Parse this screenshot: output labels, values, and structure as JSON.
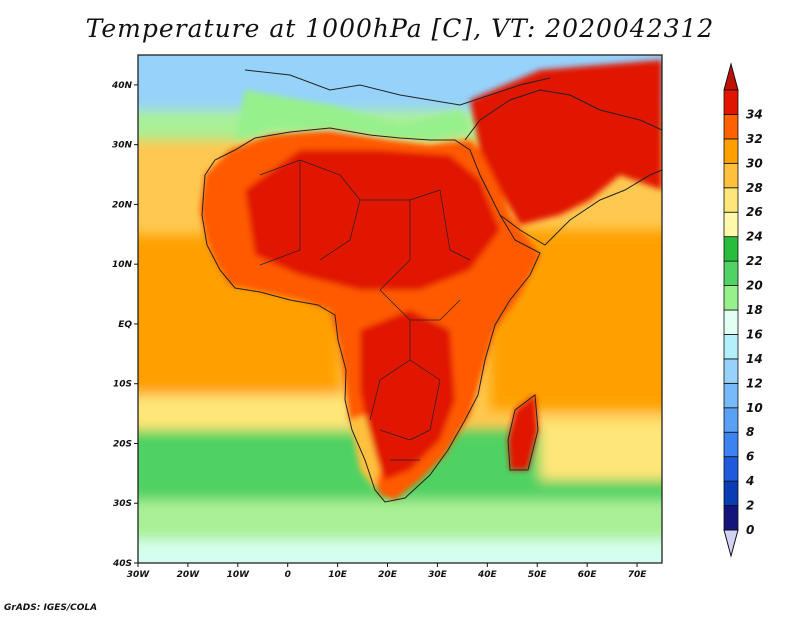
{
  "title": "Temperature at 1000hPa [C], VT: 2020042312",
  "footer": "GrADS: IGES/COLA",
  "map": {
    "projection": "latlon",
    "lon_range": [
      -30,
      75
    ],
    "lat_range": [
      -40,
      45
    ],
    "lat_ticks": [
      {
        "value": 40,
        "label": "40N"
      },
      {
        "value": 30,
        "label": "30N"
      },
      {
        "value": 20,
        "label": "20N"
      },
      {
        "value": 10,
        "label": "10N"
      },
      {
        "value": 0,
        "label": "EQ"
      },
      {
        "value": -10,
        "label": "10S"
      },
      {
        "value": -20,
        "label": "20S"
      },
      {
        "value": -30,
        "label": "30S"
      },
      {
        "value": -40,
        "label": "40S"
      }
    ],
    "lon_ticks": [
      {
        "value": -30,
        "label": "30W"
      },
      {
        "value": -20,
        "label": "20W"
      },
      {
        "value": -10,
        "label": "10W"
      },
      {
        "value": 0,
        "label": "0"
      },
      {
        "value": 10,
        "label": "10E"
      },
      {
        "value": 20,
        "label": "20E"
      },
      {
        "value": 30,
        "label": "30E"
      },
      {
        "value": 40,
        "label": "40E"
      },
      {
        "value": 50,
        "label": "50E"
      },
      {
        "value": 60,
        "label": "60E"
      },
      {
        "value": 70,
        "label": "70E"
      }
    ]
  },
  "colorbar": {
    "orientation": "vertical",
    "levels": [
      {
        "value": 0,
        "label": "0",
        "color": "#14147a"
      },
      {
        "value": 2,
        "label": "2",
        "color": "#0a3cb4"
      },
      {
        "value": 4,
        "label": "4",
        "color": "#1e5adc"
      },
      {
        "value": 6,
        "label": "6",
        "color": "#3c82f0"
      },
      {
        "value": 8,
        "label": "8",
        "color": "#5aa0f5"
      },
      {
        "value": 10,
        "label": "10",
        "color": "#78b9fa"
      },
      {
        "value": 12,
        "label": "12",
        "color": "#96d2fa"
      },
      {
        "value": 14,
        "label": "14",
        "color": "#b4f0fa"
      },
      {
        "value": 16,
        "label": "16",
        "color": "#e1fff2"
      },
      {
        "value": 18,
        "label": "18",
        "color": "#96f08c"
      },
      {
        "value": 20,
        "label": "20",
        "color": "#50d264"
      },
      {
        "value": 22,
        "label": "22",
        "color": "#28be3c"
      },
      {
        "value": 24,
        "label": "24",
        "color": "#fffaaa"
      },
      {
        "value": 26,
        "label": "26",
        "color": "#ffe678"
      },
      {
        "value": 28,
        "label": "28",
        "color": "#ffc03c"
      },
      {
        "value": 30,
        "label": "30",
        "color": "#ffa000"
      },
      {
        "value": 32,
        "label": "32",
        "color": "#ff6000"
      },
      {
        "value": 34,
        "label": "34",
        "color": "#e11400"
      }
    ],
    "above_color": "#c01000",
    "below_color": "#d2d2f5"
  }
}
